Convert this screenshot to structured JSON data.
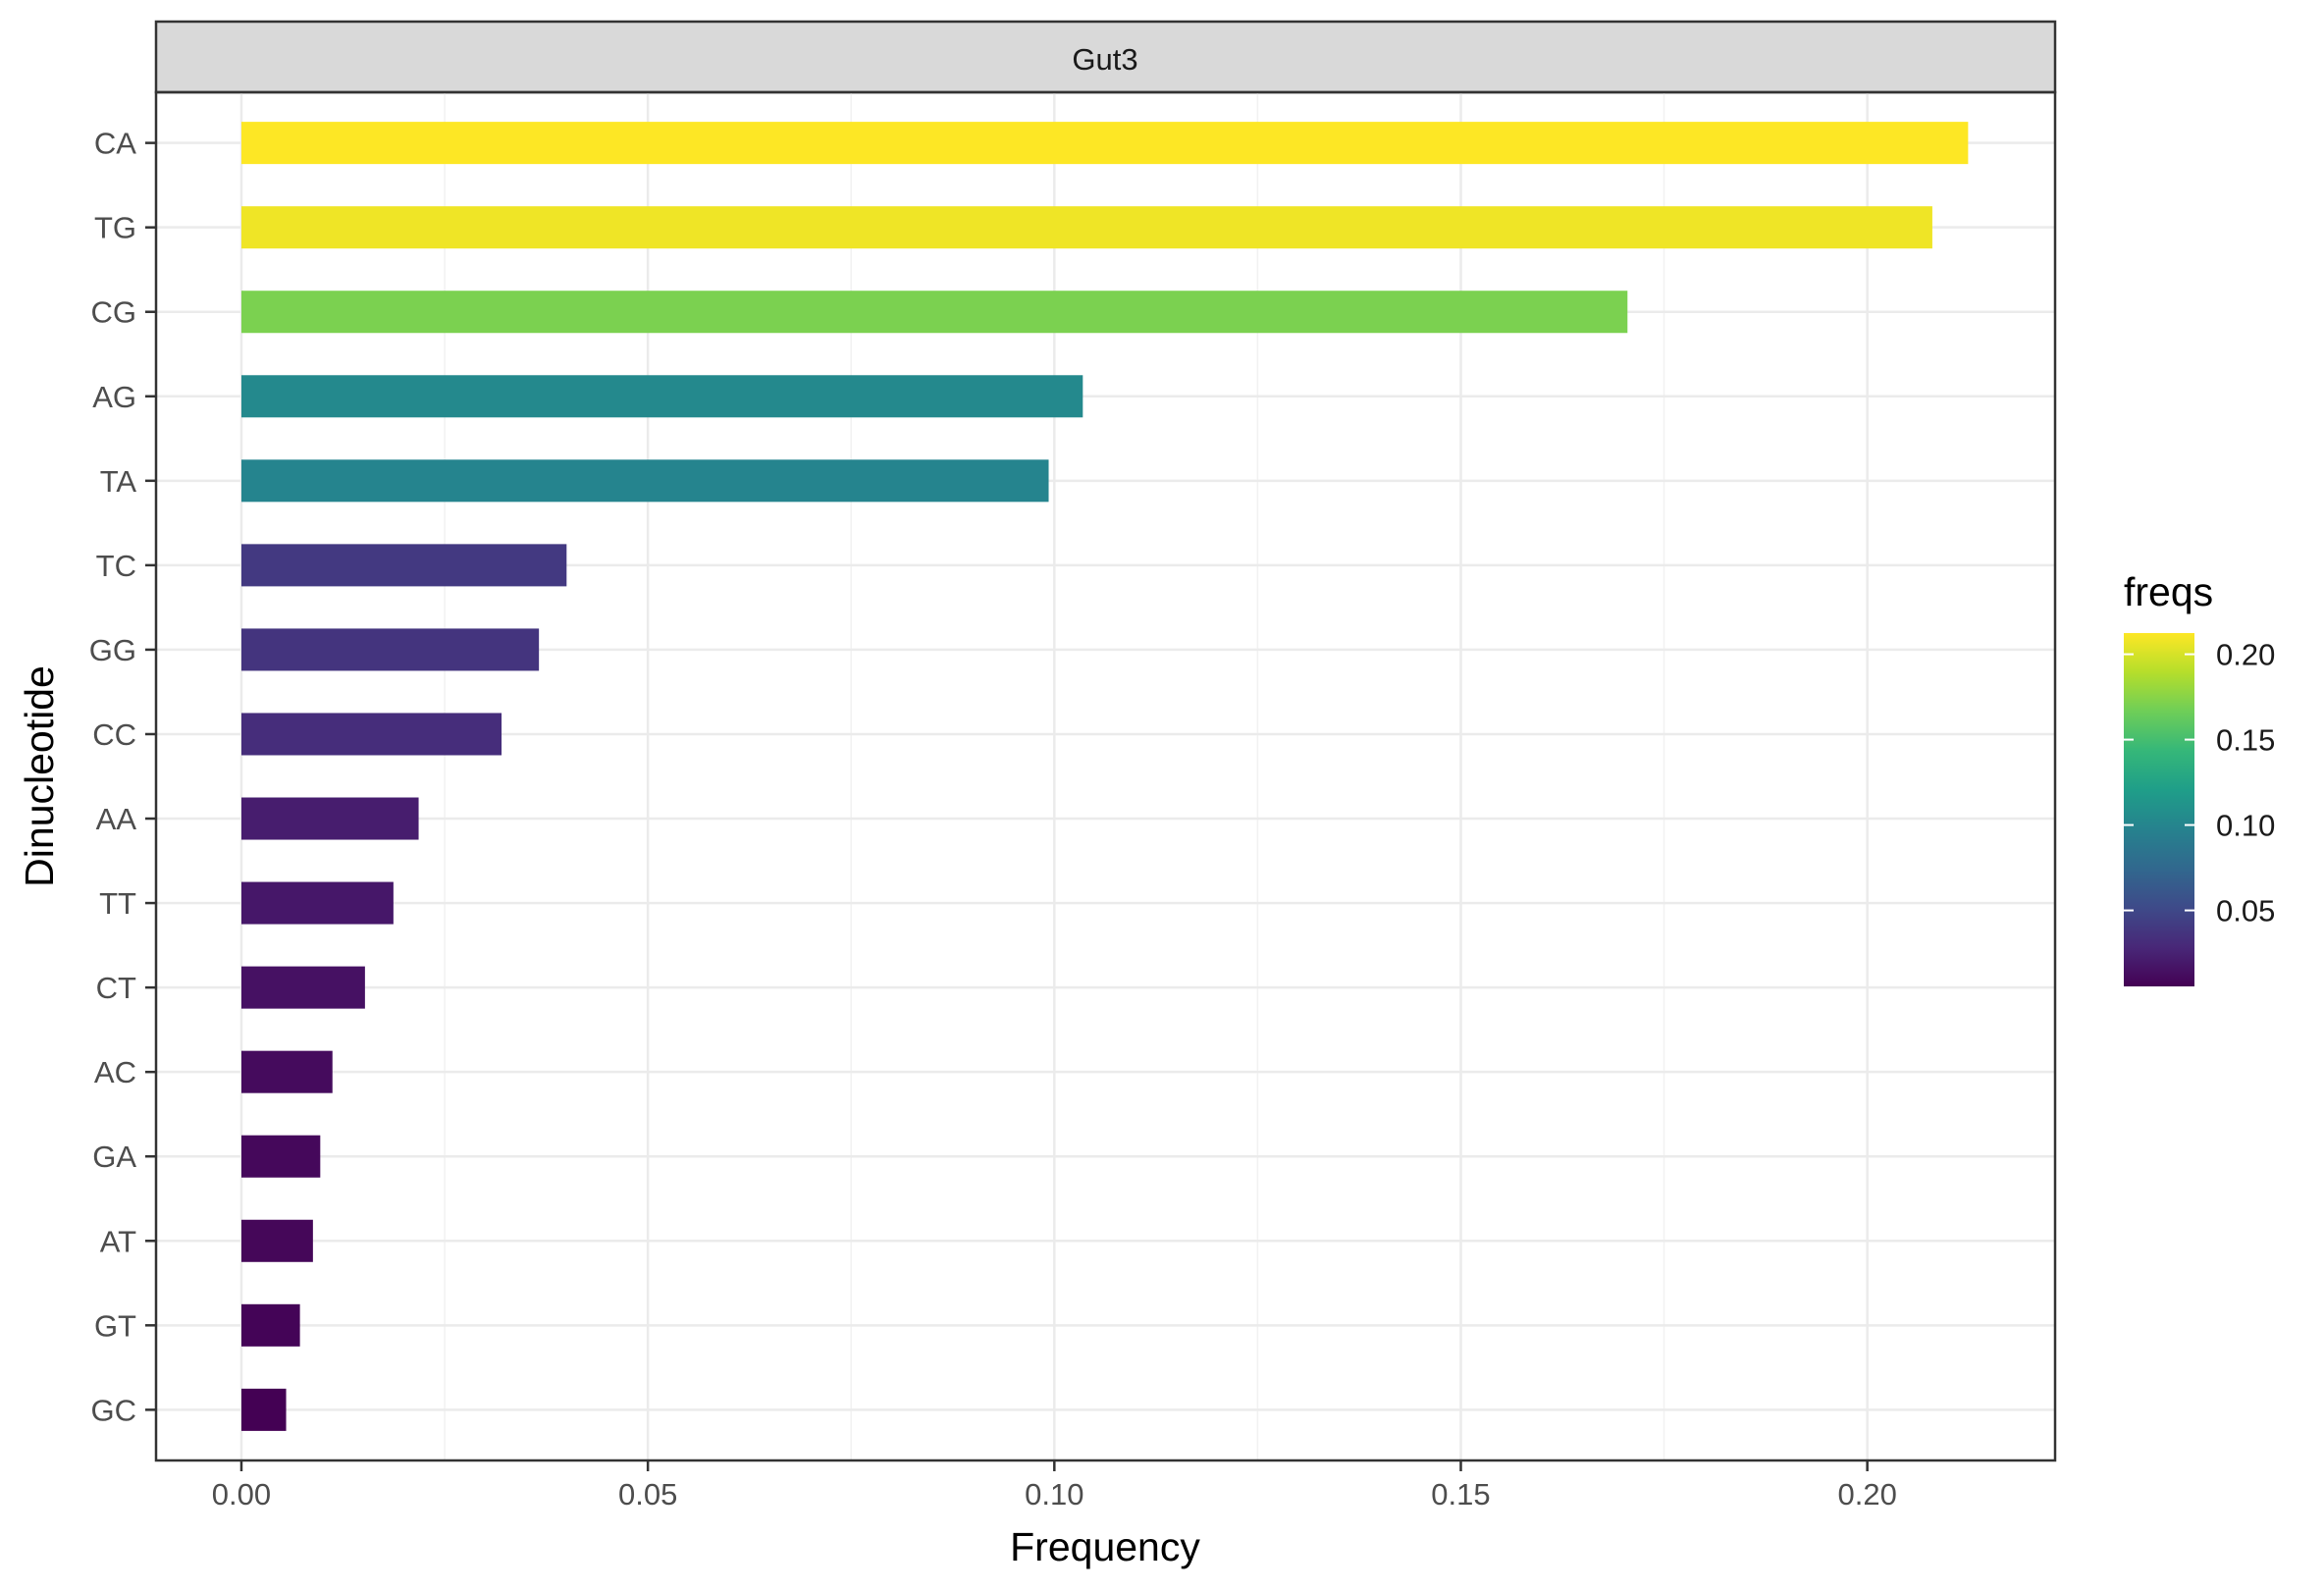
{
  "chart_data": {
    "type": "bar",
    "orientation": "horizontal",
    "facet_label": "Gut3",
    "xlabel": "Frequency",
    "ylabel": "Dinucleotide",
    "xlim": [
      -0.0105,
      0.2231
    ],
    "x_ticks": [
      "0.00",
      "0.05",
      "0.10",
      "0.15",
      "0.20"
    ],
    "x_tick_values": [
      0.0,
      0.05,
      0.1,
      0.15,
      0.2
    ],
    "grid": true,
    "categories": [
      "CA",
      "TG",
      "CG",
      "AG",
      "TA",
      "TC",
      "GG",
      "CC",
      "AA",
      "TT",
      "CT",
      "AC",
      "GA",
      "AT",
      "GT",
      "GC"
    ],
    "values": [
      0.2124,
      0.208,
      0.1705,
      0.1035,
      0.0993,
      0.04,
      0.0366,
      0.032,
      0.0218,
      0.0187,
      0.0152,
      0.0112,
      0.0097,
      0.0088,
      0.0072,
      0.0055
    ],
    "legend": {
      "title": "freqs",
      "position": "right",
      "ticks": [
        "0.05",
        "0.10",
        "0.15",
        "0.20"
      ],
      "tick_values": [
        0.05,
        0.1,
        0.15,
        0.2
      ],
      "range": [
        0.0055,
        0.2124
      ]
    },
    "colors": {
      "panel_border": "#333333",
      "strip_fill": "#d9d9d9",
      "grid": "#ebebeb",
      "axis_text": "#4d4d4d",
      "title_text": "#000000",
      "viridis": [
        "#440154",
        "#482878",
        "#3e4a89",
        "#31688e",
        "#26828e",
        "#1f9e89",
        "#35b779",
        "#6ece58",
        "#b5de2b",
        "#fde725"
      ]
    }
  }
}
